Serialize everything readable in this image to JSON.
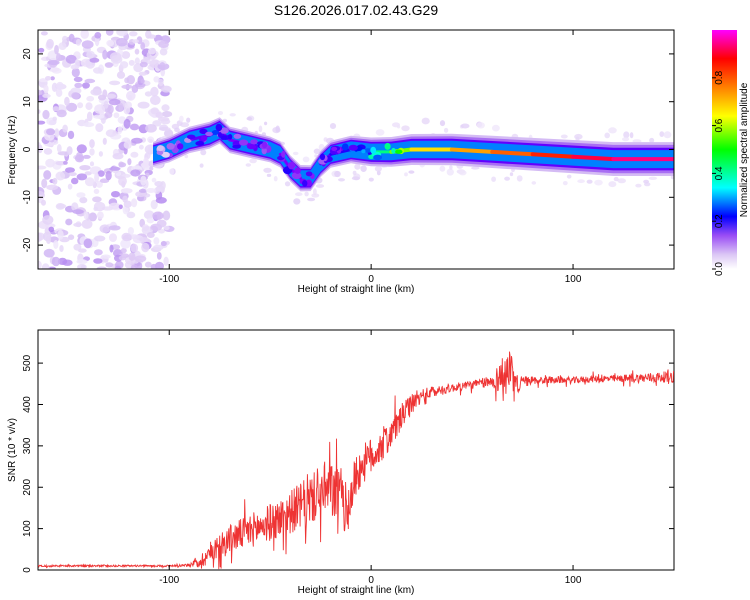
{
  "figure_title": "S126.2026.017.02.43.G29",
  "chart_data": [
    {
      "type": "heatmap",
      "title": "S126.2026.017.02.43.G29",
      "xlabel": "Height of straight line (km)",
      "ylabel": "Frequency (Hz)",
      "xlim": [
        -165,
        150
      ],
      "ylim": [
        -25,
        25
      ],
      "x_ticks": [
        -100,
        0,
        100
      ],
      "y_ticks": [
        -20,
        -10,
        0,
        10,
        20
      ],
      "colorbar": {
        "label": "Normalized spectral amplitude",
        "range": [
          0,
          1
        ],
        "ticks": [
          0.0,
          0.2,
          0.4,
          0.6,
          0.8
        ],
        "colormap": [
          "#ffffff",
          "#dcc7f5",
          "#b48af0",
          "#7a00ff",
          "#0000ff",
          "#00ffff",
          "#00ff00",
          "#ffff00",
          "#ff8000",
          "#ff0000",
          "#ff00ff"
        ]
      },
      "track": {
        "x": [
          -108,
          -100,
          -90,
          -80,
          -75,
          -70,
          -60,
          -50,
          -45,
          -40,
          -35,
          -30,
          -25,
          -20,
          -10,
          0,
          10,
          20,
          40,
          60,
          80,
          100,
          120,
          150
        ],
        "freq": [
          -1,
          0,
          2,
          3,
          4,
          2,
          1,
          0,
          -1,
          -4,
          -6,
          -6,
          -3,
          -1,
          0,
          -0.5,
          -0.5,
          0,
          0,
          -0.5,
          -1,
          -1.5,
          -2,
          -2
        ],
        "amplitude": [
          0.15,
          0.25,
          0.3,
          0.35,
          0.3,
          0.3,
          0.3,
          0.25,
          0.3,
          0.3,
          0.3,
          0.25,
          0.3,
          0.35,
          0.4,
          0.5,
          0.6,
          0.7,
          0.75,
          0.8,
          0.85,
          0.9,
          0.95,
          0.95
        ]
      },
      "noise_region_x": [
        -165,
        -100
      ]
    },
    {
      "type": "line",
      "xlabel": "Height of straight line (km)",
      "ylabel": "SNR (10 * v/v)",
      "xlim": [
        -165,
        150
      ],
      "ylim": [
        0,
        580
      ],
      "x_ticks": [
        -100,
        0,
        100
      ],
      "y_ticks": [
        0,
        100,
        200,
        300,
        400,
        500
      ],
      "series": [
        {
          "name": "SNR",
          "color": "#ee3333",
          "x": [
            -165,
            -150,
            -120,
            -100,
            -90,
            -85,
            -80,
            -75,
            -70,
            -65,
            -60,
            -55,
            -50,
            -45,
            -40,
            -35,
            -30,
            -25,
            -20,
            -15,
            -12,
            -10,
            -8,
            -5,
            0,
            5,
            10,
            15,
            20,
            25,
            30,
            40,
            50,
            60,
            65,
            68,
            70,
            72,
            75,
            80,
            90,
            100,
            110,
            120,
            130,
            140,
            150
          ],
          "y": [
            10,
            10,
            10,
            10,
            12,
            20,
            40,
            60,
            75,
            85,
            95,
            105,
            115,
            125,
            140,
            155,
            170,
            185,
            190,
            180,
            140,
            180,
            220,
            250,
            275,
            300,
            330,
            370,
            400,
            420,
            430,
            440,
            448,
            455,
            470,
            480,
            455,
            445,
            455,
            458,
            460,
            458,
            462,
            462,
            463,
            465,
            468
          ],
          "noise_amplitude": [
            3,
            3,
            3,
            3,
            5,
            20,
            40,
            50,
            50,
            55,
            60,
            60,
            65,
            70,
            75,
            80,
            85,
            90,
            95,
            100,
            90,
            80,
            75,
            70,
            65,
            60,
            55,
            45,
            35,
            25,
            20,
            15,
            15,
            20,
            70,
            90,
            80,
            40,
            20,
            15,
            12,
            12,
            12,
            12,
            15,
            18,
            20
          ]
        }
      ]
    }
  ]
}
